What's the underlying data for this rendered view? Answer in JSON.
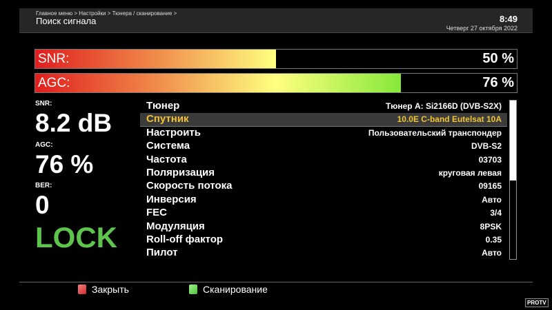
{
  "header": {
    "breadcrumb": "Главное меню > Настройки > Тюнера / сканирование >",
    "title": "Поиск сигнала",
    "time": "8:49",
    "date": "Четверг 27 октября 2022"
  },
  "bars": [
    {
      "label": "SNR:",
      "percent_text": "50 %",
      "value": 50
    },
    {
      "label": "AGC:",
      "percent_text": "76 %",
      "value": 76
    }
  ],
  "stats": {
    "snr_label": "SNR:",
    "snr_value": "8.2 dB",
    "agc_label": "AGC:",
    "agc_value": "76 %",
    "ber_label": "BER:",
    "ber_value": "0",
    "lock": "LOCK"
  },
  "list": [
    {
      "key": "Тюнер",
      "value": "Тюнер A: Si2166D (DVB-S2X)"
    },
    {
      "key": "Спутник",
      "value": "10.0E C-band Eutelsat 10A",
      "selected": true
    },
    {
      "key": "Настроить",
      "value": "Пользовательский транспондер"
    },
    {
      "key": "Система",
      "value": "DVB-S2"
    },
    {
      "key": "Частота",
      "value": "03703"
    },
    {
      "key": "Поляризация",
      "value": "круговая левая"
    },
    {
      "key": "Скорость потока",
      "value": "09165"
    },
    {
      "key": "Инверсия",
      "value": "Авто"
    },
    {
      "key": "FEC",
      "value": "3/4"
    },
    {
      "key": "Модуляция",
      "value": "8PSK"
    },
    {
      "key": "Roll-off фактор",
      "value": "0.35"
    },
    {
      "key": "Пилот",
      "value": "Авто"
    }
  ],
  "footer": {
    "close": "Закрыть",
    "scan": "Сканирование",
    "close_color": "#d42a2a",
    "scan_color": "#4cc43a"
  },
  "watermark": "PROTV"
}
